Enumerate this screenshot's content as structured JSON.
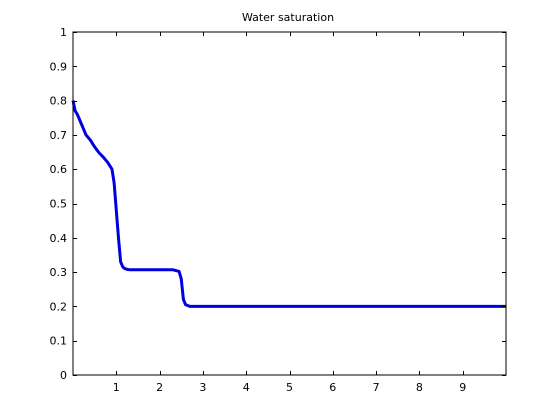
{
  "chart_data": {
    "type": "line",
    "title": "Water saturation",
    "xlabel": "",
    "ylabel": "",
    "xlim": [
      0,
      10
    ],
    "ylim": [
      0,
      1
    ],
    "grid": false,
    "legend": "none",
    "x_ticks": [
      1,
      2,
      3,
      4,
      5,
      6,
      7,
      8,
      9
    ],
    "x_tick_labels": [
      "1",
      "2",
      "3",
      "4",
      "5",
      "6",
      "7",
      "8",
      "9"
    ],
    "y_ticks": [
      0,
      0.1,
      0.2,
      0.3,
      0.4,
      0.5,
      0.6,
      0.7,
      0.8,
      0.9,
      1
    ],
    "y_tick_labels": [
      "0",
      "0.1",
      "0.2",
      "0.3",
      "0.4",
      "0.5",
      "0.6",
      "0.7",
      "0.8",
      "0.9",
      "1"
    ],
    "series": [
      {
        "color": "#0000e0",
        "x": [
          0,
          0.05,
          0.1,
          0.2,
          0.3,
          0.4,
          0.5,
          0.6,
          0.7,
          0.8,
          0.9,
          0.95,
          1.0,
          1.05,
          1.1,
          1.15,
          1.2,
          1.25,
          1.3,
          1.5,
          2.0,
          2.3,
          2.45,
          2.5,
          2.55,
          2.6,
          2.7,
          3.0,
          5.0,
          8.0,
          10.0
        ],
        "y": [
          0.8,
          0.77,
          0.76,
          0.73,
          0.7,
          0.685,
          0.665,
          0.648,
          0.635,
          0.62,
          0.6,
          0.56,
          0.48,
          0.4,
          0.33,
          0.315,
          0.31,
          0.308,
          0.307,
          0.307,
          0.307,
          0.307,
          0.302,
          0.28,
          0.22,
          0.205,
          0.2,
          0.2,
          0.2,
          0.2,
          0.2
        ]
      }
    ]
  }
}
